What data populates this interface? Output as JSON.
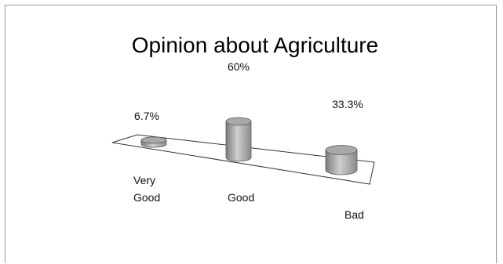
{
  "chart_data": {
    "type": "bar",
    "title": "Opinion about Agriculture",
    "categories": [
      [
        "Very",
        "Good"
      ],
      [
        "Good"
      ],
      [
        "Bad"
      ]
    ],
    "values": [
      6.7,
      60,
      33.3
    ],
    "value_labels": [
      "6.7%",
      "60%",
      "33.3%"
    ],
    "unit": "%",
    "ylim": [
      0,
      60
    ],
    "grid": false,
    "legend": "none",
    "style": "3d-cylinder",
    "bar_color": "#a8a8a8"
  }
}
